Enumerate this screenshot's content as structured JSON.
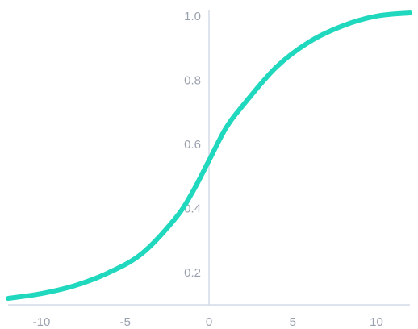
{
  "chart_data": {
    "type": "line",
    "title": "",
    "xlabel": "",
    "ylabel": "",
    "xlim": [
      -12,
      12
    ],
    "ylim": [
      0.1,
      1.02
    ],
    "grid": false,
    "x_ticks": [
      -10,
      -5,
      0,
      5,
      10
    ],
    "x_tick_labels": [
      "-10",
      "-5",
      "0",
      "5",
      "10"
    ],
    "y_ticks": [
      0.2,
      0.4,
      0.6,
      0.8,
      1.0
    ],
    "y_tick_labels": [
      "0.2",
      "0.4",
      "0.6",
      "0.8",
      "1.0"
    ],
    "series": [
      {
        "color": "#1fd8bd",
        "x": [
          -12,
          -10,
          -8,
          -6,
          -4,
          -2,
          -1,
          0,
          1,
          2,
          4,
          6,
          8,
          10,
          12
        ],
        "y": [
          0.12,
          0.135,
          0.16,
          0.2,
          0.26,
          0.37,
          0.45,
          0.55,
          0.65,
          0.72,
          0.84,
          0.92,
          0.97,
          1.0,
          1.01
        ]
      }
    ]
  }
}
